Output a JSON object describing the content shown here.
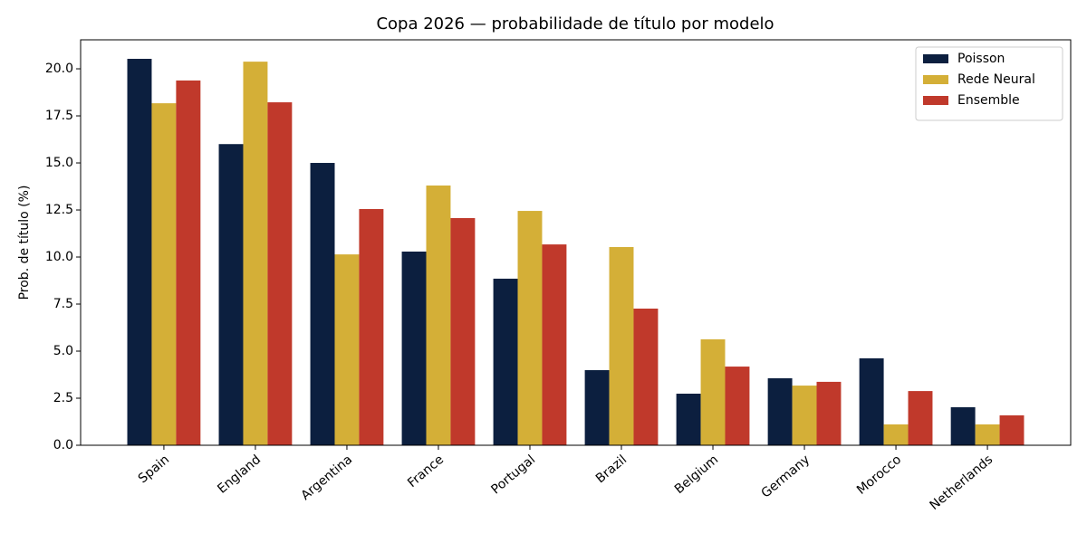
{
  "chart_data": {
    "type": "bar",
    "title": "Copa 2026 — probabilidade de título por modelo",
    "y_label": "Prob. de título (%)",
    "categories": [
      "Spain",
      "England",
      "Argentina",
      "France",
      "Portugal",
      "Brazil",
      "Belgium",
      "Germany",
      "Morocco",
      "Netherlands"
    ],
    "series": [
      {
        "name": "Poisson",
        "color": "#0c1f3f",
        "values": [
          20.53,
          16.0,
          15.0,
          10.29,
          8.85,
          3.99,
          2.74,
          3.56,
          4.62,
          2.02
        ]
      },
      {
        "name": "Rede Neural",
        "color": "#d4af37",
        "values": [
          18.17,
          20.38,
          10.14,
          13.8,
          12.45,
          10.53,
          5.63,
          3.17,
          1.11,
          1.11
        ]
      },
      {
        "name": "Ensemble",
        "color": "#c0392b",
        "values": [
          19.38,
          18.22,
          12.55,
          12.07,
          10.67,
          7.26,
          4.18,
          3.37,
          2.88,
          1.59
        ]
      }
    ],
    "ylim": [
      0,
      21.54
    ],
    "yticks": [
      {
        "value": 0,
        "label": "0.0"
      },
      2.5,
      {
        "value": 5,
        "label": "5.0"
      },
      7.5,
      {
        "value": 10,
        "label": "10.0"
      },
      12.5,
      {
        "value": 15,
        "label": "15.0"
      },
      17.5,
      {
        "value": 20,
        "label": "20.0"
      }
    ],
    "legend": "upper right"
  }
}
